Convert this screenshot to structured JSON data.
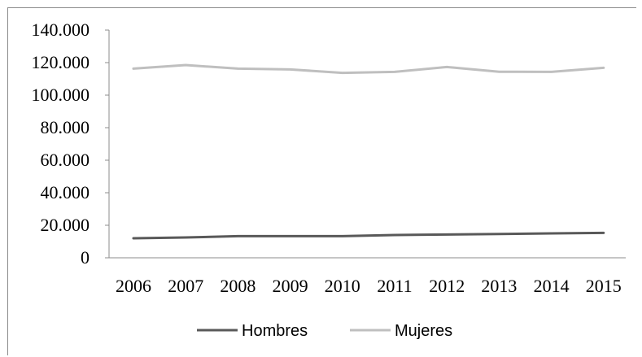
{
  "chart_data": {
    "type": "line",
    "title": "",
    "xlabel": "",
    "ylabel": "",
    "categories": [
      "2006",
      "2007",
      "2008",
      "2009",
      "2010",
      "2011",
      "2012",
      "2013",
      "2014",
      "2015"
    ],
    "ylim": [
      0,
      140000
    ],
    "yticks": [
      {
        "value": 0,
        "label": "0"
      },
      {
        "value": 20000,
        "label": "20.000"
      },
      {
        "value": 40000,
        "label": "40.000"
      },
      {
        "value": 60000,
        "label": "60.000"
      },
      {
        "value": 80000,
        "label": "80.000"
      },
      {
        "value": 100000,
        "label": "100.000"
      },
      {
        "value": 120000,
        "label": "120.000"
      },
      {
        "value": 140000,
        "label": "140.000"
      }
    ],
    "grid": false,
    "legend_position": "bottom",
    "series": [
      {
        "name": "Hombres",
        "color": "#595959",
        "values": [
          12000,
          12500,
          13300,
          13300,
          13300,
          14000,
          14300,
          14600,
          15000,
          15300
        ]
      },
      {
        "name": "Mujeres",
        "color": "#bfbfbf",
        "values": [
          116300,
          118500,
          116300,
          115800,
          113700,
          114300,
          117300,
          114400,
          114300,
          116800
        ]
      }
    ]
  }
}
